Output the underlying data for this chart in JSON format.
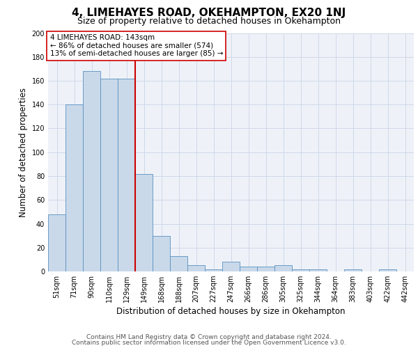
{
  "title1": "4, LIMEHAYES ROAD, OKEHAMPTON, EX20 1NJ",
  "title2": "Size of property relative to detached houses in Okehampton",
  "xlabel": "Distribution of detached houses by size in Okehampton",
  "ylabel": "Number of detached properties",
  "bar_labels": [
    "51sqm",
    "71sqm",
    "90sqm",
    "110sqm",
    "129sqm",
    "149sqm",
    "168sqm",
    "188sqm",
    "207sqm",
    "227sqm",
    "247sqm",
    "266sqm",
    "286sqm",
    "305sqm",
    "325sqm",
    "344sqm",
    "364sqm",
    "383sqm",
    "403sqm",
    "422sqm",
    "442sqm"
  ],
  "bar_heights": [
    48,
    140,
    168,
    162,
    162,
    82,
    30,
    13,
    5,
    2,
    8,
    4,
    4,
    5,
    2,
    2,
    0,
    2,
    0,
    2,
    0
  ],
  "bar_color": "#c9d9ea",
  "bar_edge_color": "#5a8fc0",
  "grid_color": "#d0d8e8",
  "bg_color": "#eef2f8",
  "redline_index": 5,
  "redline_color": "#cc0000",
  "annotation_text": "4 LIMEHAYES ROAD: 143sqm\n← 86% of detached houses are smaller (574)\n13% of semi-detached houses are larger (85) →",
  "annotation_box_color": "#ffffff",
  "annotation_box_edge": "#cc0000",
  "ylim": [
    0,
    200
  ],
  "yticks": [
    0,
    20,
    40,
    60,
    80,
    100,
    120,
    140,
    160,
    180,
    200
  ],
  "footnote1": "Contains HM Land Registry data © Crown copyright and database right 2024.",
  "footnote2": "Contains public sector information licensed under the Open Government Licence v3.0.",
  "title1_fontsize": 11,
  "title2_fontsize": 9,
  "xlabel_fontsize": 8.5,
  "ylabel_fontsize": 8.5,
  "tick_fontsize": 7,
  "annot_fontsize": 7.5,
  "footnote_fontsize": 6.5
}
